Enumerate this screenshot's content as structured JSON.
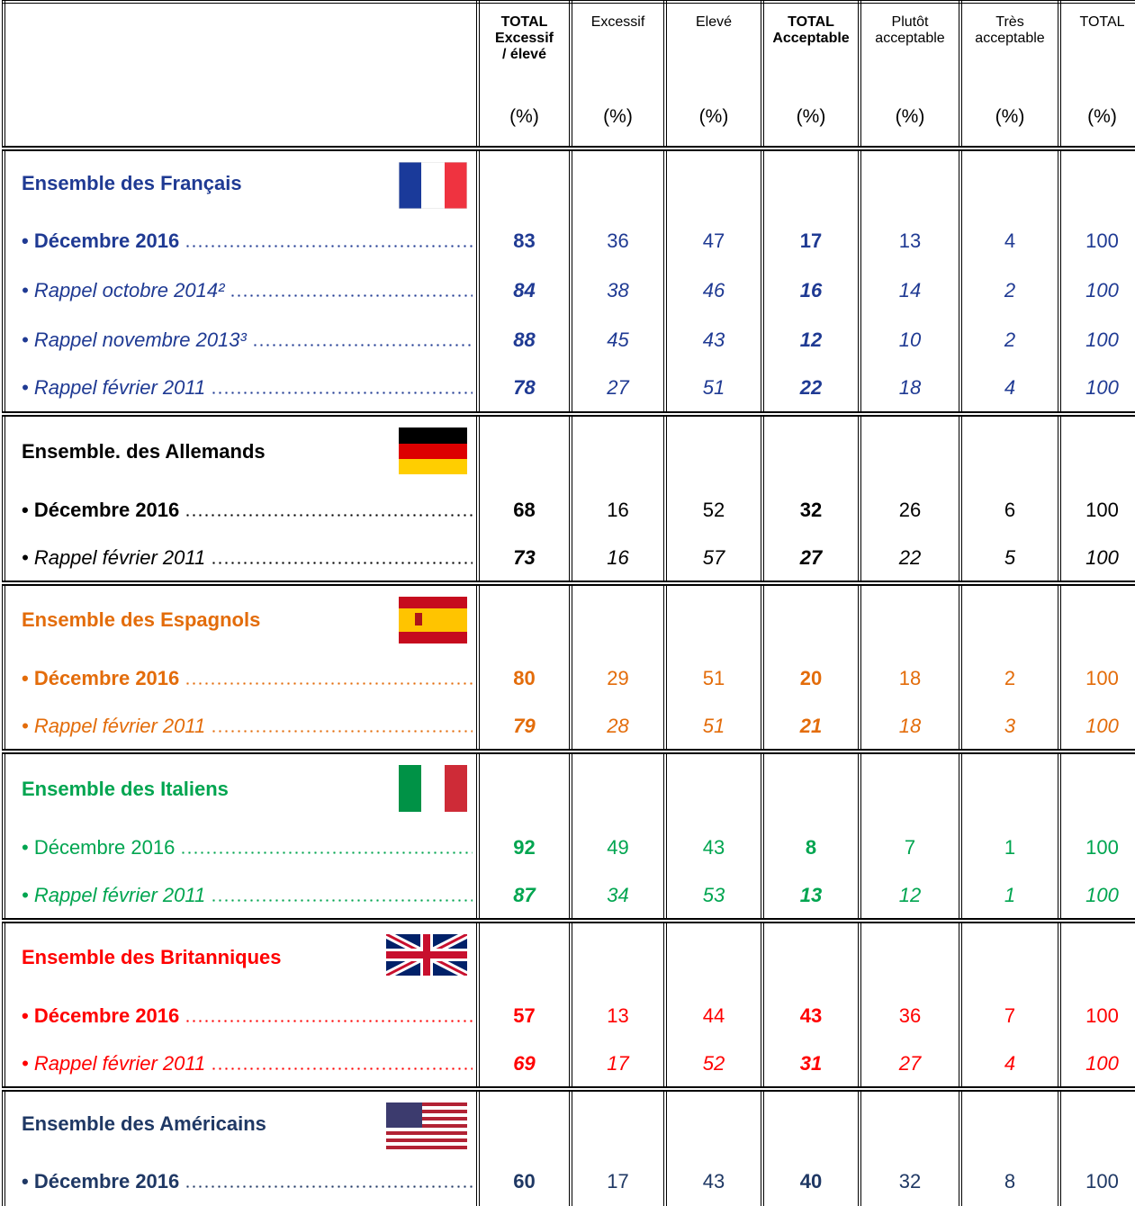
{
  "header": {
    "columns": [
      {
        "title": "TOTAL\nExcessif\n/ élevé",
        "unit": "(%)"
      },
      {
        "title": "Excessif",
        "unit": "(%)"
      },
      {
        "title": "Elevé",
        "unit": "(%)"
      },
      {
        "title": "TOTAL\nAcceptable",
        "unit": "(%)"
      },
      {
        "title": "Plutôt\nacceptable",
        "unit": "(%)"
      },
      {
        "title": "Très\nacceptable",
        "unit": "(%)"
      },
      {
        "title": "TOTAL",
        "unit": "(%)"
      }
    ]
  },
  "groups": [
    {
      "name": "Ensemble des Français",
      "color": "#1f3a93",
      "rows": [
        {
          "label": "• Décembre 2016",
          "values": [
            83,
            36,
            47,
            17,
            13,
            4,
            100
          ]
        },
        {
          "label": "• Rappel octobre 2014²",
          "values": [
            84,
            38,
            46,
            16,
            14,
            2,
            100
          ]
        },
        {
          "label": "• Rappel novembre 2013³",
          "values": [
            88,
            45,
            43,
            12,
            10,
            2,
            100
          ]
        },
        {
          "label": "• Rappel février 2011",
          "values": [
            78,
            27,
            51,
            22,
            18,
            4,
            100
          ]
        }
      ]
    },
    {
      "name": "Ensemble. des Allemands",
      "color": "#000000",
      "rows": [
        {
          "label": "• Décembre 2016",
          "values": [
            68,
            16,
            52,
            32,
            26,
            6,
            100
          ]
        },
        {
          "label": "• Rappel février 2011",
          "values": [
            73,
            16,
            57,
            27,
            22,
            5,
            100
          ]
        }
      ]
    },
    {
      "name": "Ensemble des Espagnols",
      "color": "#e36c0a",
      "rows": [
        {
          "label": "• Décembre 2016",
          "values": [
            80,
            29,
            51,
            20,
            18,
            2,
            100
          ]
        },
        {
          "label": "• Rappel février 2011",
          "values": [
            79,
            28,
            51,
            21,
            18,
            3,
            100
          ]
        }
      ]
    },
    {
      "name": "Ensemble des Italiens",
      "color": "#00a550",
      "rows": [
        {
          "label": "• Décembre 2016",
          "values": [
            92,
            49,
            43,
            8,
            7,
            1,
            100
          ]
        },
        {
          "label": "• Rappel février 2011",
          "values": [
            87,
            34,
            53,
            13,
            12,
            1,
            100
          ]
        }
      ]
    },
    {
      "name": "Ensemble des Britanniques",
      "color": "#ff0000",
      "rows": [
        {
          "label": "• Décembre 2016",
          "values": [
            57,
            13,
            44,
            43,
            36,
            7,
            100
          ]
        },
        {
          "label": "• Rappel février 2011",
          "values": [
            69,
            17,
            52,
            31,
            27,
            4,
            100
          ]
        }
      ]
    },
    {
      "name": "Ensemble des Américains",
      "color": "#1f3864",
      "rows": [
        {
          "label": "• Décembre 2016",
          "values": [
            60,
            17,
            43,
            40,
            32,
            8,
            100
          ]
        }
      ]
    }
  ]
}
